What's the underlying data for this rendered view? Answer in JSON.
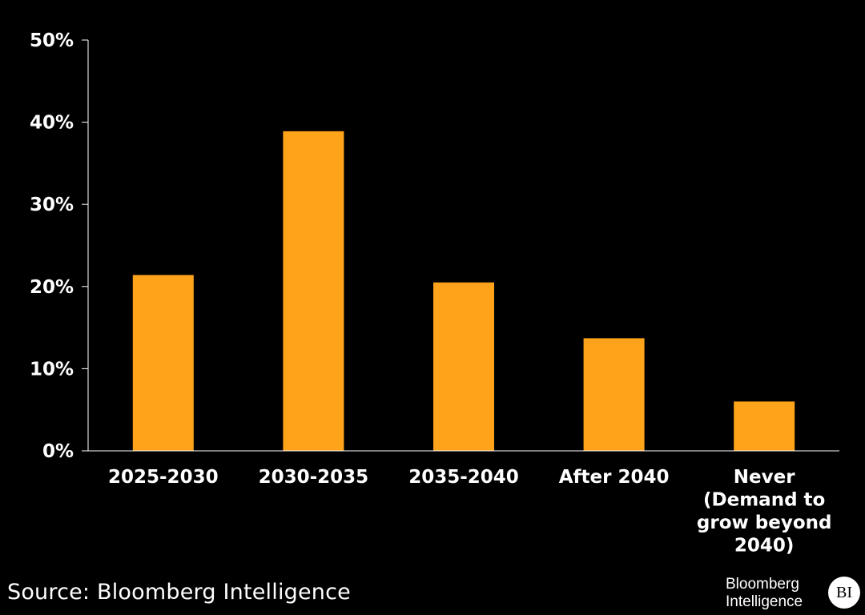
{
  "colors": {
    "background": "#000000",
    "bar": "#FFA31A",
    "axis": "#FFFFFF",
    "text": "#FFFFFF"
  },
  "chart_data": {
    "type": "bar",
    "title": "",
    "xlabel": "",
    "ylabel": "",
    "categories": [
      [
        "2025-2030"
      ],
      [
        "2030-2035"
      ],
      [
        "2035-2040"
      ],
      [
        "After 2040"
      ],
      [
        "Never",
        "(Demand to",
        "grow beyond",
        "2040)"
      ]
    ],
    "values": [
      21.4,
      38.9,
      20.5,
      13.7,
      6.0
    ],
    "unit": "%",
    "ylim": [
      0,
      50
    ],
    "yticks": [
      0,
      10,
      20,
      30,
      40,
      50
    ],
    "ytick_labels": [
      "0%",
      "10%",
      "20%",
      "30%",
      "40%",
      "50%"
    ],
    "grid": false,
    "legend": "none"
  },
  "footer": {
    "source": "Source: Bloomberg Intelligence",
    "logo_line1": "Bloomberg",
    "logo_line2": "Intelligence",
    "logo_badge": "BI"
  }
}
